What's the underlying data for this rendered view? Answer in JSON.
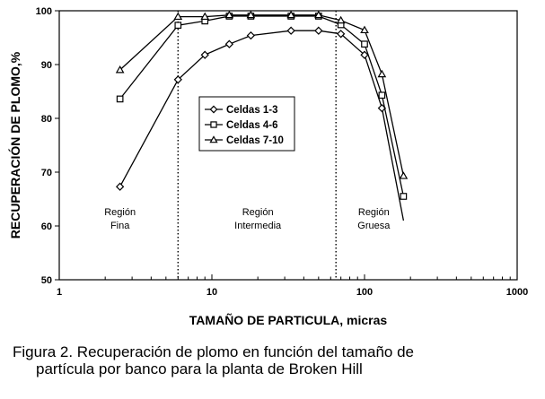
{
  "chart_data": {
    "type": "line",
    "xscale": "log",
    "xlim": [
      1,
      1000
    ],
    "ylim": [
      50,
      100
    ],
    "xticks": [
      "1",
      "10",
      "100",
      "1000"
    ],
    "yticks": [
      "50",
      "60",
      "70",
      "80",
      "90",
      "100"
    ],
    "xlabel": "TAMAÑO DE PARTICULA, micras",
    "ylabel": "RECUPERACIÓN DE PLOMO,%",
    "grid": false,
    "legend_position": "inside-center-left",
    "series": [
      {
        "name": "Celdas 1-3",
        "marker": "diamond",
        "x": [
          2.5,
          6,
          9,
          13,
          18,
          33,
          50,
          70,
          100,
          130,
          180
        ],
        "y": [
          67.3,
          87.2,
          91.8,
          93.8,
          95.4,
          96.3,
          96.3,
          95.7,
          91.8,
          81.9,
          61
        ]
      },
      {
        "name": "Celdas 4-6",
        "marker": "square",
        "x": [
          2.5,
          6,
          9,
          13,
          18,
          33,
          50,
          70,
          100,
          130,
          180
        ],
        "y": [
          83.6,
          97.3,
          98.1,
          99,
          99,
          99,
          99,
          97.4,
          93.8,
          84.3,
          65.5
        ]
      },
      {
        "name": "Celdas 7-10",
        "marker": "triangle",
        "x": [
          2.5,
          6,
          9,
          13,
          18,
          33,
          50,
          70,
          100,
          130,
          180
        ],
        "y": [
          89,
          98.9,
          98.9,
          99.2,
          99.2,
          99.2,
          99.2,
          98.2,
          96.4,
          88.2,
          69.3
        ]
      }
    ],
    "region_dividers_x": [
      6,
      65
    ],
    "regions": [
      {
        "lines": [
          "Región",
          "Fina"
        ],
        "x": 2.5,
        "y": 62
      },
      {
        "lines": [
          "Región",
          "Intermedia"
        ],
        "x": 20,
        "y": 62
      },
      {
        "lines": [
          "Región",
          "Gruesa"
        ],
        "x": 115,
        "y": 62
      }
    ]
  },
  "caption": {
    "line1": "Figura 2. Recuperación de plomo en función del tamaño de",
    "line2": "partícula por   banco para la planta de Broken Hill"
  }
}
